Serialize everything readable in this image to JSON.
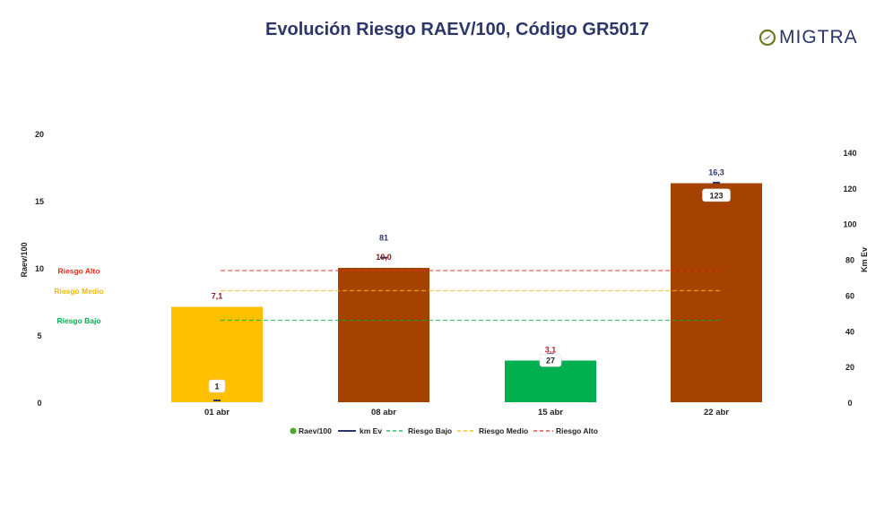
{
  "header": {
    "title": "Evolución Riesgo RAEV/100, Código GR5017",
    "logo_text": "MIGTRA"
  },
  "colors": {
    "alto": "#e8291c",
    "medio": "#f5b800",
    "bajo": "#00b050",
    "brown": "#a64200",
    "yellow": "#ffc000",
    "green": "#00b050",
    "km_line": "#2c3668",
    "title": "#2c3668"
  },
  "chart_data": {
    "type": "bar",
    "title": "Evolución Riesgo RAEV/100, Código GR5017",
    "categories": [
      "01 abr",
      "08 abr",
      "15 abr",
      "22 abr"
    ],
    "ylabel": "Raev/100",
    "y2label": "Km Ev",
    "ylim": [
      0,
      20
    ],
    "y2lim": [
      0,
      150
    ],
    "yticks": [
      "0",
      "5",
      "10",
      "15",
      "20"
    ],
    "y2ticks": [
      "0",
      "20",
      "40",
      "60",
      "80",
      "100",
      "120",
      "140"
    ],
    "series": [
      {
        "name": "Raev/100",
        "values": [
          7.1,
          10.0,
          3.1,
          16.3
        ],
        "labels": [
          "7,1",
          "10,0",
          "3,1",
          "16,3"
        ],
        "bar_colors": [
          "yellow",
          "brown",
          "green",
          "brown"
        ],
        "label_colors": [
          "#8b1a1a",
          "#8b1a1a",
          "#c0262d",
          "#2c3668"
        ]
      },
      {
        "name": "km Ev",
        "values": [
          1,
          81,
          27,
          123
        ],
        "labels": [
          "1",
          "81",
          "27",
          "123"
        ],
        "label_style": [
          "box",
          "plain",
          "box",
          "box"
        ]
      }
    ],
    "thresholds": [
      {
        "name": "Riesgo Bajo",
        "value": 6.1,
        "color": "bajo"
      },
      {
        "name": "Riesgo Medio",
        "value": 8.3,
        "color": "medio"
      },
      {
        "name": "Riesgo Alto",
        "value": 9.8,
        "color": "alto"
      }
    ],
    "legend": {
      "position": "bottom",
      "items": [
        "Raev/100",
        "km Ev",
        "Riesgo Bajo",
        "Riesgo Medio",
        "Riesgo Alto"
      ]
    }
  }
}
